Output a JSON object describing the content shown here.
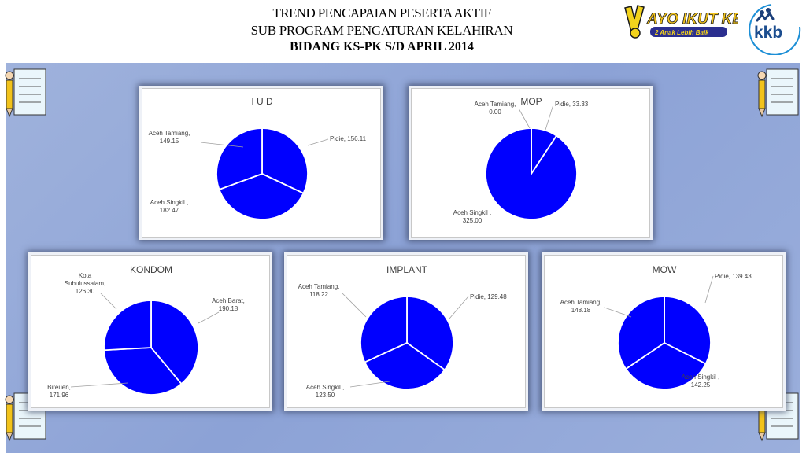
{
  "header": {
    "line1": "TREND PENCAPAIAN  PESERTA  AKTIF",
    "line2": "SUB    PROGRAM  PENGATURAN    KELAHIRAN",
    "line3": "BIDANG KS-PK S/D  APRIL 2014"
  },
  "logos": {
    "ayo_main": "AYO IKUT KB",
    "ayo_sub": "2 Anak Lebih Baik",
    "kkb": "kkb"
  },
  "colors": {
    "slice": "#0000ff",
    "background": "#8fa5d8"
  },
  "chart_data": [
    {
      "type": "pie",
      "title": "I U D",
      "slices": [
        {
          "label": "Pidie",
          "value": 156.11,
          "display": "Pidie, 156.11"
        },
        {
          "label": "Aceh Singkil ,",
          "value": 182.47,
          "display": "Aceh Singkil ,|182.47"
        },
        {
          "label": "Aceh Tamiang,",
          "value": 149.15,
          "display": "Aceh Tamiang,|149.15"
        }
      ]
    },
    {
      "type": "pie",
      "title": "MOP",
      "slices": [
        {
          "label": "Pidie",
          "value": 33.33,
          "display": "Pidie, 33.33"
        },
        {
          "label": "Aceh Singkil ,",
          "value": 325.0,
          "display": "Aceh Singkil ,|325.00"
        },
        {
          "label": "Aceh Tamiang,",
          "value": 0.0,
          "display": "Aceh Tamiang,|0.00"
        }
      ]
    },
    {
      "type": "pie",
      "title": "KONDOM",
      "slices": [
        {
          "label": "Aceh Barat",
          "value": 190.18,
          "display": "Aceh Barat,|190.18"
        },
        {
          "label": "Bireuen",
          "value": 171.96,
          "display": "Bireuen,|171.96"
        },
        {
          "label": "Kota Subulussalam",
          "value": 126.3,
          "display": "Kota|Subulussalam,|126.30"
        }
      ]
    },
    {
      "type": "pie",
      "title": "IMPLANT",
      "slices": [
        {
          "label": "Pidie",
          "value": 129.48,
          "display": "Pidie, 129.48"
        },
        {
          "label": "Aceh Singkil ,",
          "value": 123.5,
          "display": "Aceh Singkil ,|123.50"
        },
        {
          "label": "Aceh Tamiang,",
          "value": 118.22,
          "display": "Aceh Tamiang,|118.22"
        }
      ]
    },
    {
      "type": "pie",
      "title": "MOW",
      "slices": [
        {
          "label": "Pidie",
          "value": 139.43,
          "display": "Pidie, 139.43"
        },
        {
          "label": "Aceh Singkil ,",
          "value": 142.25,
          "display": "Aceh Singkil ,|142.25"
        },
        {
          "label": "Aceh Tamiang,",
          "value": 148.18,
          "display": "Aceh Tamiang,|148.18"
        }
      ]
    }
  ]
}
